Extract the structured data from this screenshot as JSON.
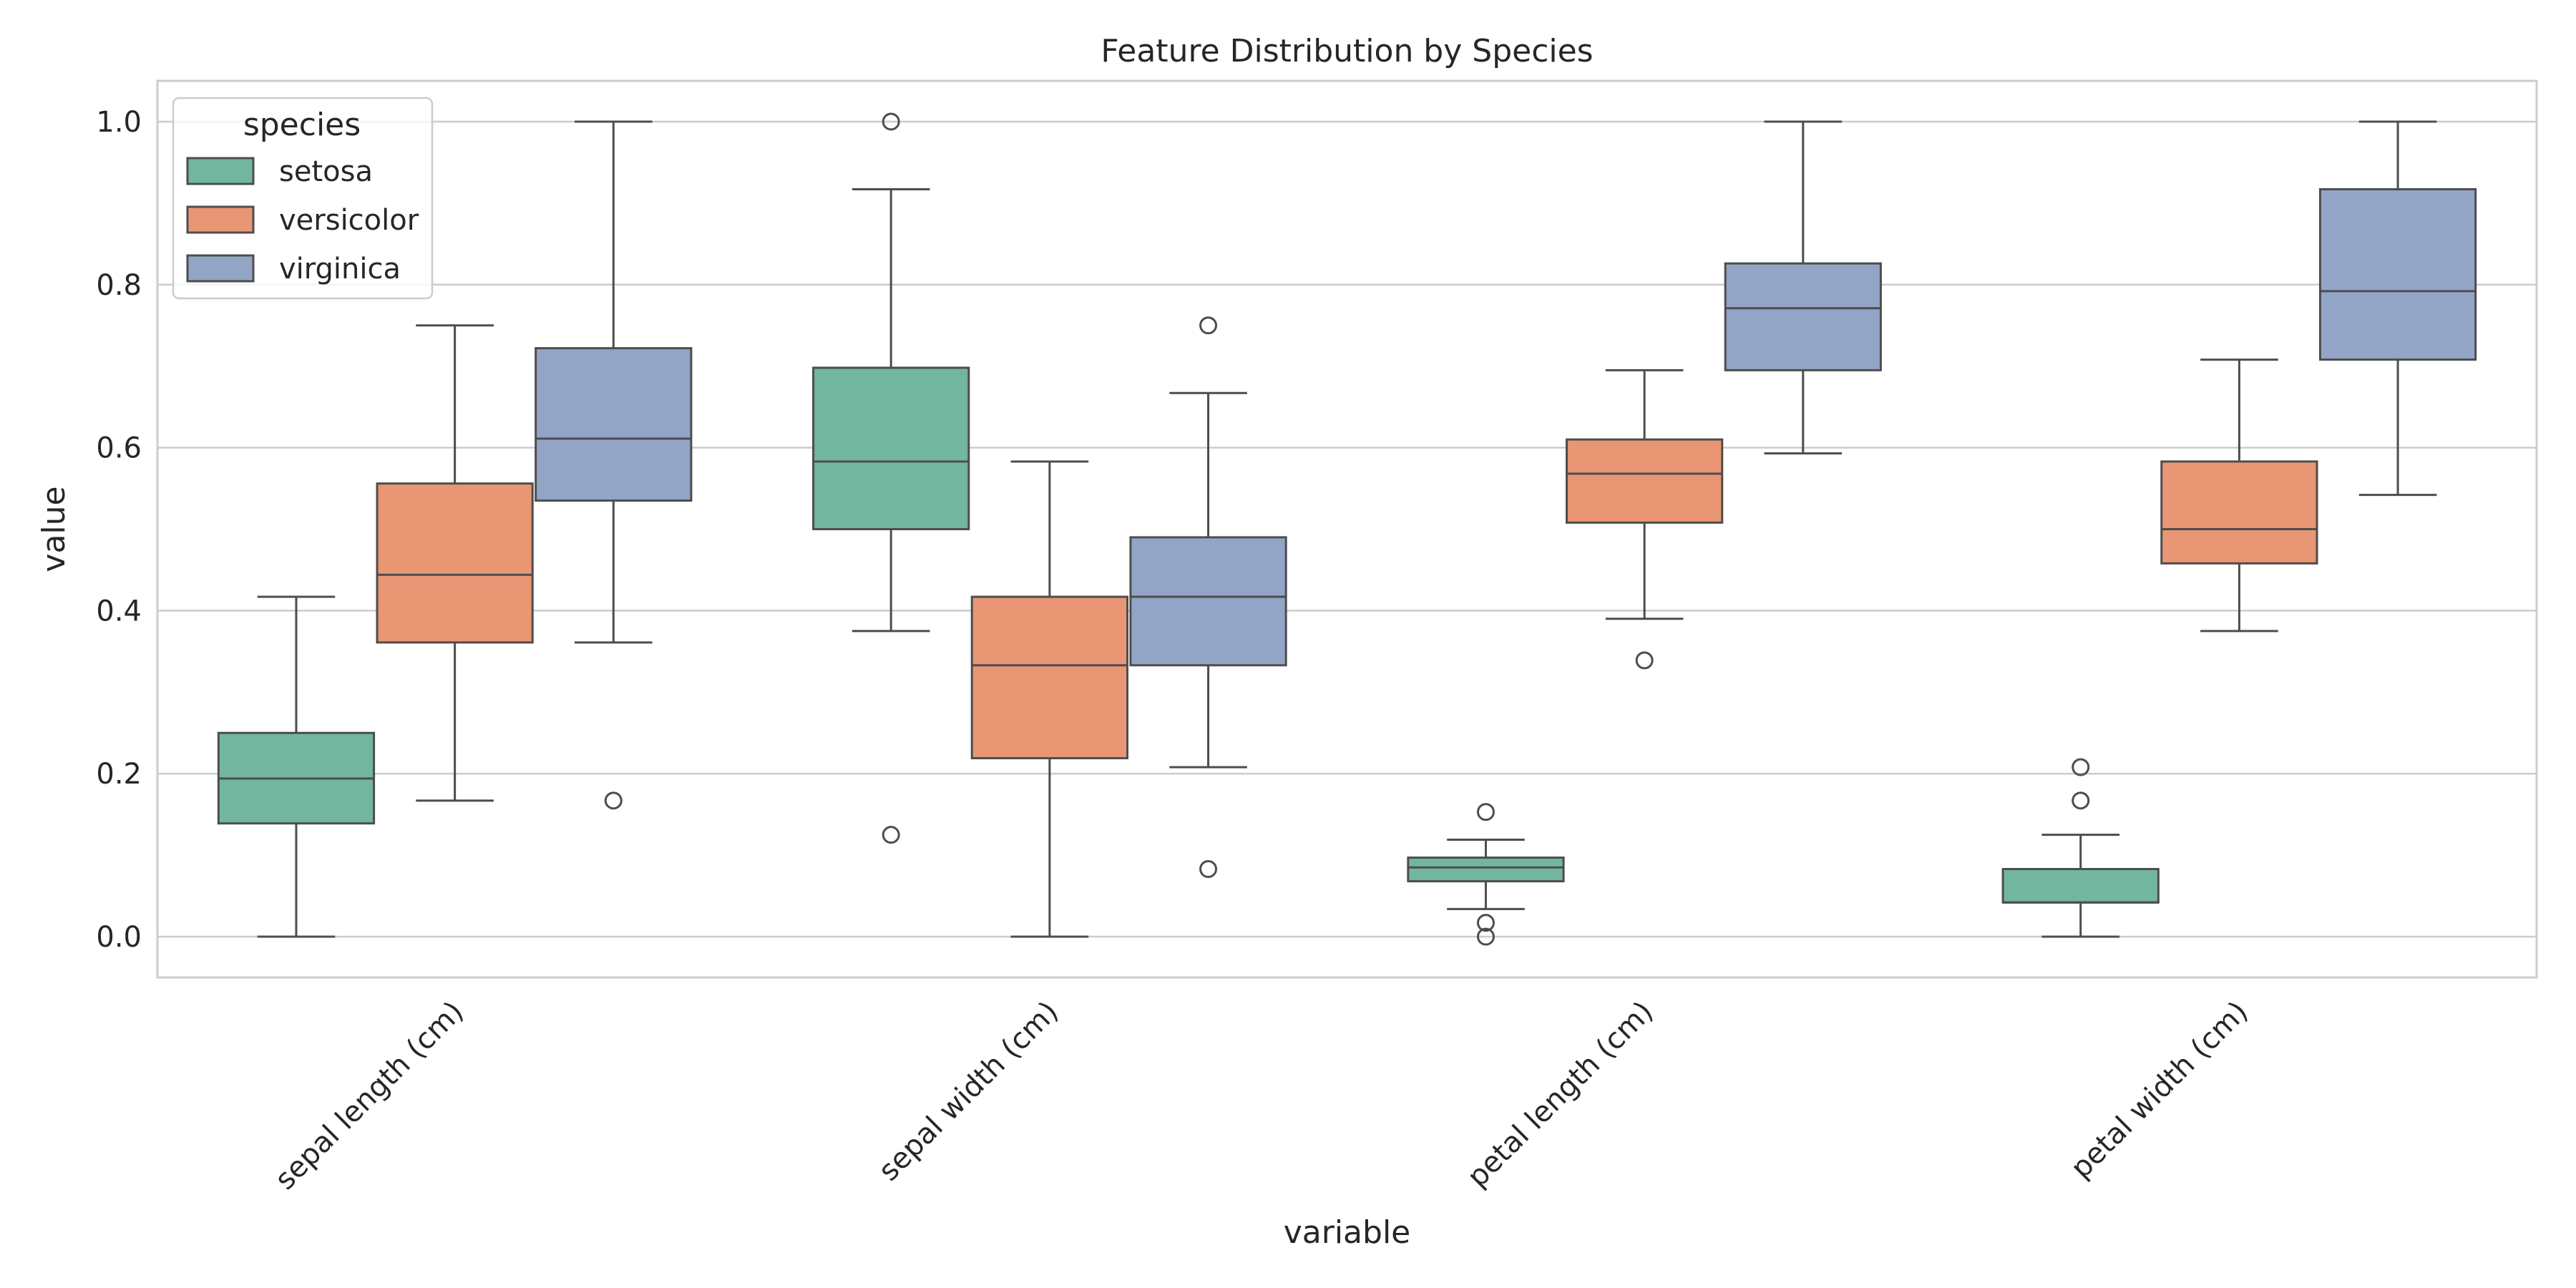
{
  "chart_data": {
    "type": "box",
    "title": "Feature Distribution by Species",
    "xlabel": "variable",
    "ylabel": "value",
    "ylim": [
      -0.05,
      1.05
    ],
    "yticks": [
      0.0,
      0.2,
      0.4,
      0.6,
      0.8,
      1.0
    ],
    "ytick_labels": [
      "0.0",
      "0.2",
      "0.4",
      "0.6",
      "0.8",
      "1.0"
    ],
    "grid": true,
    "legend": {
      "title": "species",
      "placement": "top-left"
    },
    "categories": [
      "sepal length (cm)",
      "sepal width (cm)",
      "petal length (cm)",
      "petal width (cm)"
    ],
    "series": [
      {
        "name": "setosa",
        "color": "#72b6a0",
        "boxes": [
          {
            "whislo": 0.0,
            "q1": 0.139,
            "med": 0.194,
            "q3": 0.25,
            "whishi": 0.417,
            "fliers": []
          },
          {
            "whislo": 0.375,
            "q1": 0.5,
            "med": 0.583,
            "q3": 0.698,
            "whishi": 0.917,
            "fliers": [
              1.0,
              0.125
            ]
          },
          {
            "whislo": 0.034,
            "q1": 0.068,
            "med": 0.085,
            "q3": 0.097,
            "whishi": 0.119,
            "fliers": [
              0.153,
              0.017,
              0.0
            ]
          },
          {
            "whislo": 0.0,
            "q1": 0.042,
            "med": 0.042,
            "q3": 0.083,
            "whishi": 0.125,
            "fliers": [
              0.208,
              0.167
            ]
          }
        ]
      },
      {
        "name": "versicolor",
        "color": "#e99674",
        "boxes": [
          {
            "whislo": 0.167,
            "q1": 0.361,
            "med": 0.444,
            "q3": 0.556,
            "whishi": 0.75,
            "fliers": []
          },
          {
            "whislo": 0.0,
            "q1": 0.219,
            "med": 0.333,
            "q3": 0.417,
            "whishi": 0.583,
            "fliers": []
          },
          {
            "whislo": 0.39,
            "q1": 0.508,
            "med": 0.568,
            "q3": 0.61,
            "whishi": 0.695,
            "fliers": [
              0.339
            ]
          },
          {
            "whislo": 0.375,
            "q1": 0.458,
            "med": 0.5,
            "q3": 0.583,
            "whishi": 0.708,
            "fliers": []
          }
        ]
      },
      {
        "name": "virginica",
        "color": "#93a5c6",
        "boxes": [
          {
            "whislo": 0.361,
            "q1": 0.535,
            "med": 0.611,
            "q3": 0.722,
            "whishi": 1.0,
            "fliers": [
              0.167
            ]
          },
          {
            "whislo": 0.208,
            "q1": 0.333,
            "med": 0.417,
            "q3": 0.49,
            "whishi": 0.667,
            "fliers": [
              0.75,
              0.083
            ]
          },
          {
            "whislo": 0.593,
            "q1": 0.695,
            "med": 0.771,
            "q3": 0.826,
            "whishi": 1.0,
            "fliers": []
          },
          {
            "whislo": 0.542,
            "q1": 0.708,
            "med": 0.792,
            "q3": 0.917,
            "whishi": 1.0,
            "fliers": []
          }
        ]
      }
    ]
  }
}
